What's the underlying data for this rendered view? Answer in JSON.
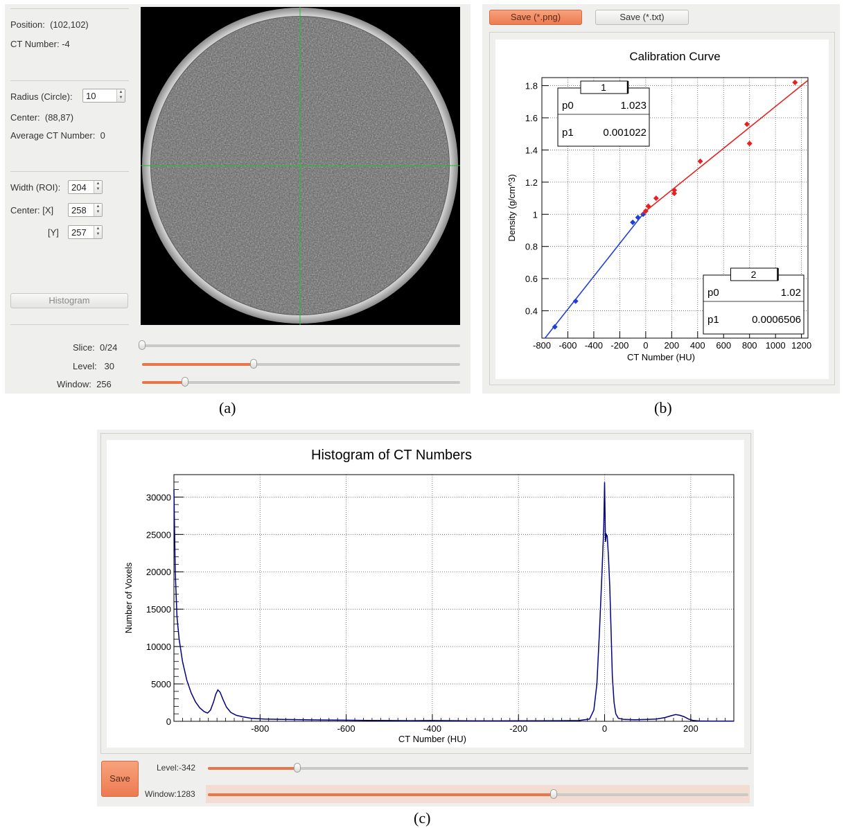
{
  "panel_a": {
    "info": {
      "position_label": "Position:",
      "position_value": "(102,102)",
      "ct_number_label": "CT Number:",
      "ct_number_value": "-4"
    },
    "circle": {
      "radius_label": "Radius (Circle):",
      "radius_value": "10",
      "center_label": "Center:",
      "center_value": "(88,87)",
      "avg_label": "Average CT Number:",
      "avg_value": "0"
    },
    "roi": {
      "width_label": "Width (ROI):",
      "width_value": "204",
      "center_x_label": "Center:  [X]",
      "center_x_value": "258",
      "center_y_label": "[Y]",
      "center_y_value": "257"
    },
    "histogram_button": "Histogram",
    "sliders": {
      "slice_label": "Slice:",
      "slice_value": "0/24",
      "slice_fraction": 0.0,
      "level_label": "Level:",
      "level_value": "30",
      "level_fraction": 0.35,
      "window_label": "Window:",
      "window_value": "256",
      "window_fraction": 0.135
    },
    "colors": {
      "accent": "#e8764a",
      "crosshair": "#22c032"
    }
  },
  "panel_b": {
    "save_png": "Save (*.png)",
    "save_txt": "Save (*.txt)",
    "chart_data": {
      "type": "scatter",
      "title": "Calibration Curve",
      "xlabel": "CT Number (HU)",
      "ylabel": "Density (g/cm^3)",
      "xlim": [
        -800,
        1250
      ],
      "ylim": [
        0.23,
        1.85
      ],
      "xticks": [
        "-800",
        "-600",
        "-400",
        "-200",
        "0",
        "200",
        "400",
        "600",
        "800",
        "1000",
        "1200"
      ],
      "xtick_values": [
        -800,
        -600,
        -400,
        -200,
        0,
        200,
        400,
        600,
        800,
        1000,
        1200
      ],
      "yticks": [
        "0.4",
        "0.6",
        "0.8",
        "1",
        "1.2",
        "1.4",
        "1.6",
        "1.8"
      ],
      "ytick_values": [
        0.4,
        0.6,
        0.8,
        1.0,
        1.2,
        1.4,
        1.6,
        1.8
      ],
      "grid": true,
      "series": [
        {
          "color": "#1f3fd6",
          "x": [
            -700,
            -540,
            -100,
            -60,
            -20
          ],
          "y": [
            0.3,
            0.46,
            0.95,
            0.98,
            1.0
          ],
          "fit": {
            "p0": 1.023,
            "p1": 0.001022,
            "x_range": [
              -800,
              -30
            ]
          }
        },
        {
          "color": "#e82020",
          "x": [
            0,
            20,
            80,
            220,
            220,
            420,
            780,
            800,
            1150
          ],
          "y": [
            1.02,
            1.05,
            1.1,
            1.15,
            1.13,
            1.33,
            1.56,
            1.44,
            1.82
          ],
          "fit": {
            "p0": 1.02,
            "p1": 0.0006506,
            "x_range": [
              -30,
              1250
            ]
          }
        }
      ],
      "stat_boxes": [
        {
          "title": "1",
          "p0_label": "p0",
          "p0": "1.023",
          "p1_label": "p1",
          "p1": "0.001022"
        },
        {
          "title": "2",
          "p0_label": "p0",
          "p0": "1.02",
          "p1_label": "p1",
          "p1": "0.0006506"
        }
      ]
    }
  },
  "panel_c": {
    "save_button": "Save",
    "level_label": "Level:",
    "level_value": "-342",
    "level_fraction": 0.165,
    "window_label": "Window:",
    "window_value": "1283",
    "window_fraction": 0.64,
    "chart_data": {
      "type": "line",
      "title": "Histogram of CT Numbers",
      "xlabel": "CT Number (HU)",
      "ylabel": "Number of Voxels",
      "xlim": [
        -1000,
        300
      ],
      "ylim": [
        0,
        33000
      ],
      "xticks": [
        "-800",
        "-600",
        "-400",
        "-200",
        "0",
        "200"
      ],
      "xtick_values": [
        -800,
        -600,
        -400,
        -200,
        0,
        200
      ],
      "yticks": [
        "0",
        "5000",
        "10000",
        "15000",
        "20000",
        "25000",
        "30000"
      ],
      "ytick_values": [
        0,
        5000,
        10000,
        15000,
        20000,
        25000,
        30000
      ],
      "grid": true,
      "color": "#000080",
      "points": [
        [
          -1000,
          31000
        ],
        [
          -997,
          20000
        ],
        [
          -993,
          14000
        ],
        [
          -988,
          11000
        ],
        [
          -980,
          8000
        ],
        [
          -970,
          5500
        ],
        [
          -960,
          3800
        ],
        [
          -950,
          2600
        ],
        [
          -940,
          1800
        ],
        [
          -930,
          1300
        ],
        [
          -922,
          1100
        ],
        [
          -915,
          1500
        ],
        [
          -908,
          2600
        ],
        [
          -903,
          3600
        ],
        [
          -898,
          4200
        ],
        [
          -893,
          3900
        ],
        [
          -886,
          2900
        ],
        [
          -878,
          1900
        ],
        [
          -868,
          1200
        ],
        [
          -855,
          800
        ],
        [
          -840,
          600
        ],
        [
          -820,
          400
        ],
        [
          -790,
          300
        ],
        [
          -750,
          250
        ],
        [
          -700,
          200
        ],
        [
          -650,
          180
        ],
        [
          -600,
          150
        ],
        [
          -550,
          120
        ],
        [
          -500,
          100
        ],
        [
          -450,
          80
        ],
        [
          -400,
          100
        ],
        [
          -350,
          80
        ],
        [
          -300,
          60
        ],
        [
          -250,
          60
        ],
        [
          -200,
          70
        ],
        [
          -150,
          70
        ],
        [
          -100,
          80
        ],
        [
          -60,
          100
        ],
        [
          -35,
          300
        ],
        [
          -25,
          1500
        ],
        [
          -18,
          5000
        ],
        [
          -12,
          12000
        ],
        [
          -6,
          20000
        ],
        [
          -2,
          26000
        ],
        [
          0,
          32000
        ],
        [
          2,
          24000
        ],
        [
          4,
          25000
        ],
        [
          6,
          24800
        ],
        [
          9,
          22000
        ],
        [
          12,
          18000
        ],
        [
          15,
          12000
        ],
        [
          18,
          6000
        ],
        [
          22,
          2500
        ],
        [
          26,
          1000
        ],
        [
          32,
          400
        ],
        [
          45,
          250
        ],
        [
          70,
          200
        ],
        [
          100,
          250
        ],
        [
          120,
          300
        ],
        [
          140,
          500
        ],
        [
          155,
          750
        ],
        [
          165,
          900
        ],
        [
          175,
          800
        ],
        [
          185,
          600
        ],
        [
          195,
          300
        ],
        [
          205,
          120
        ],
        [
          220,
          50
        ],
        [
          250,
          30
        ],
        [
          300,
          20
        ]
      ]
    }
  },
  "captions": {
    "a": "(a)",
    "b": "(b)",
    "c": "(c)"
  }
}
